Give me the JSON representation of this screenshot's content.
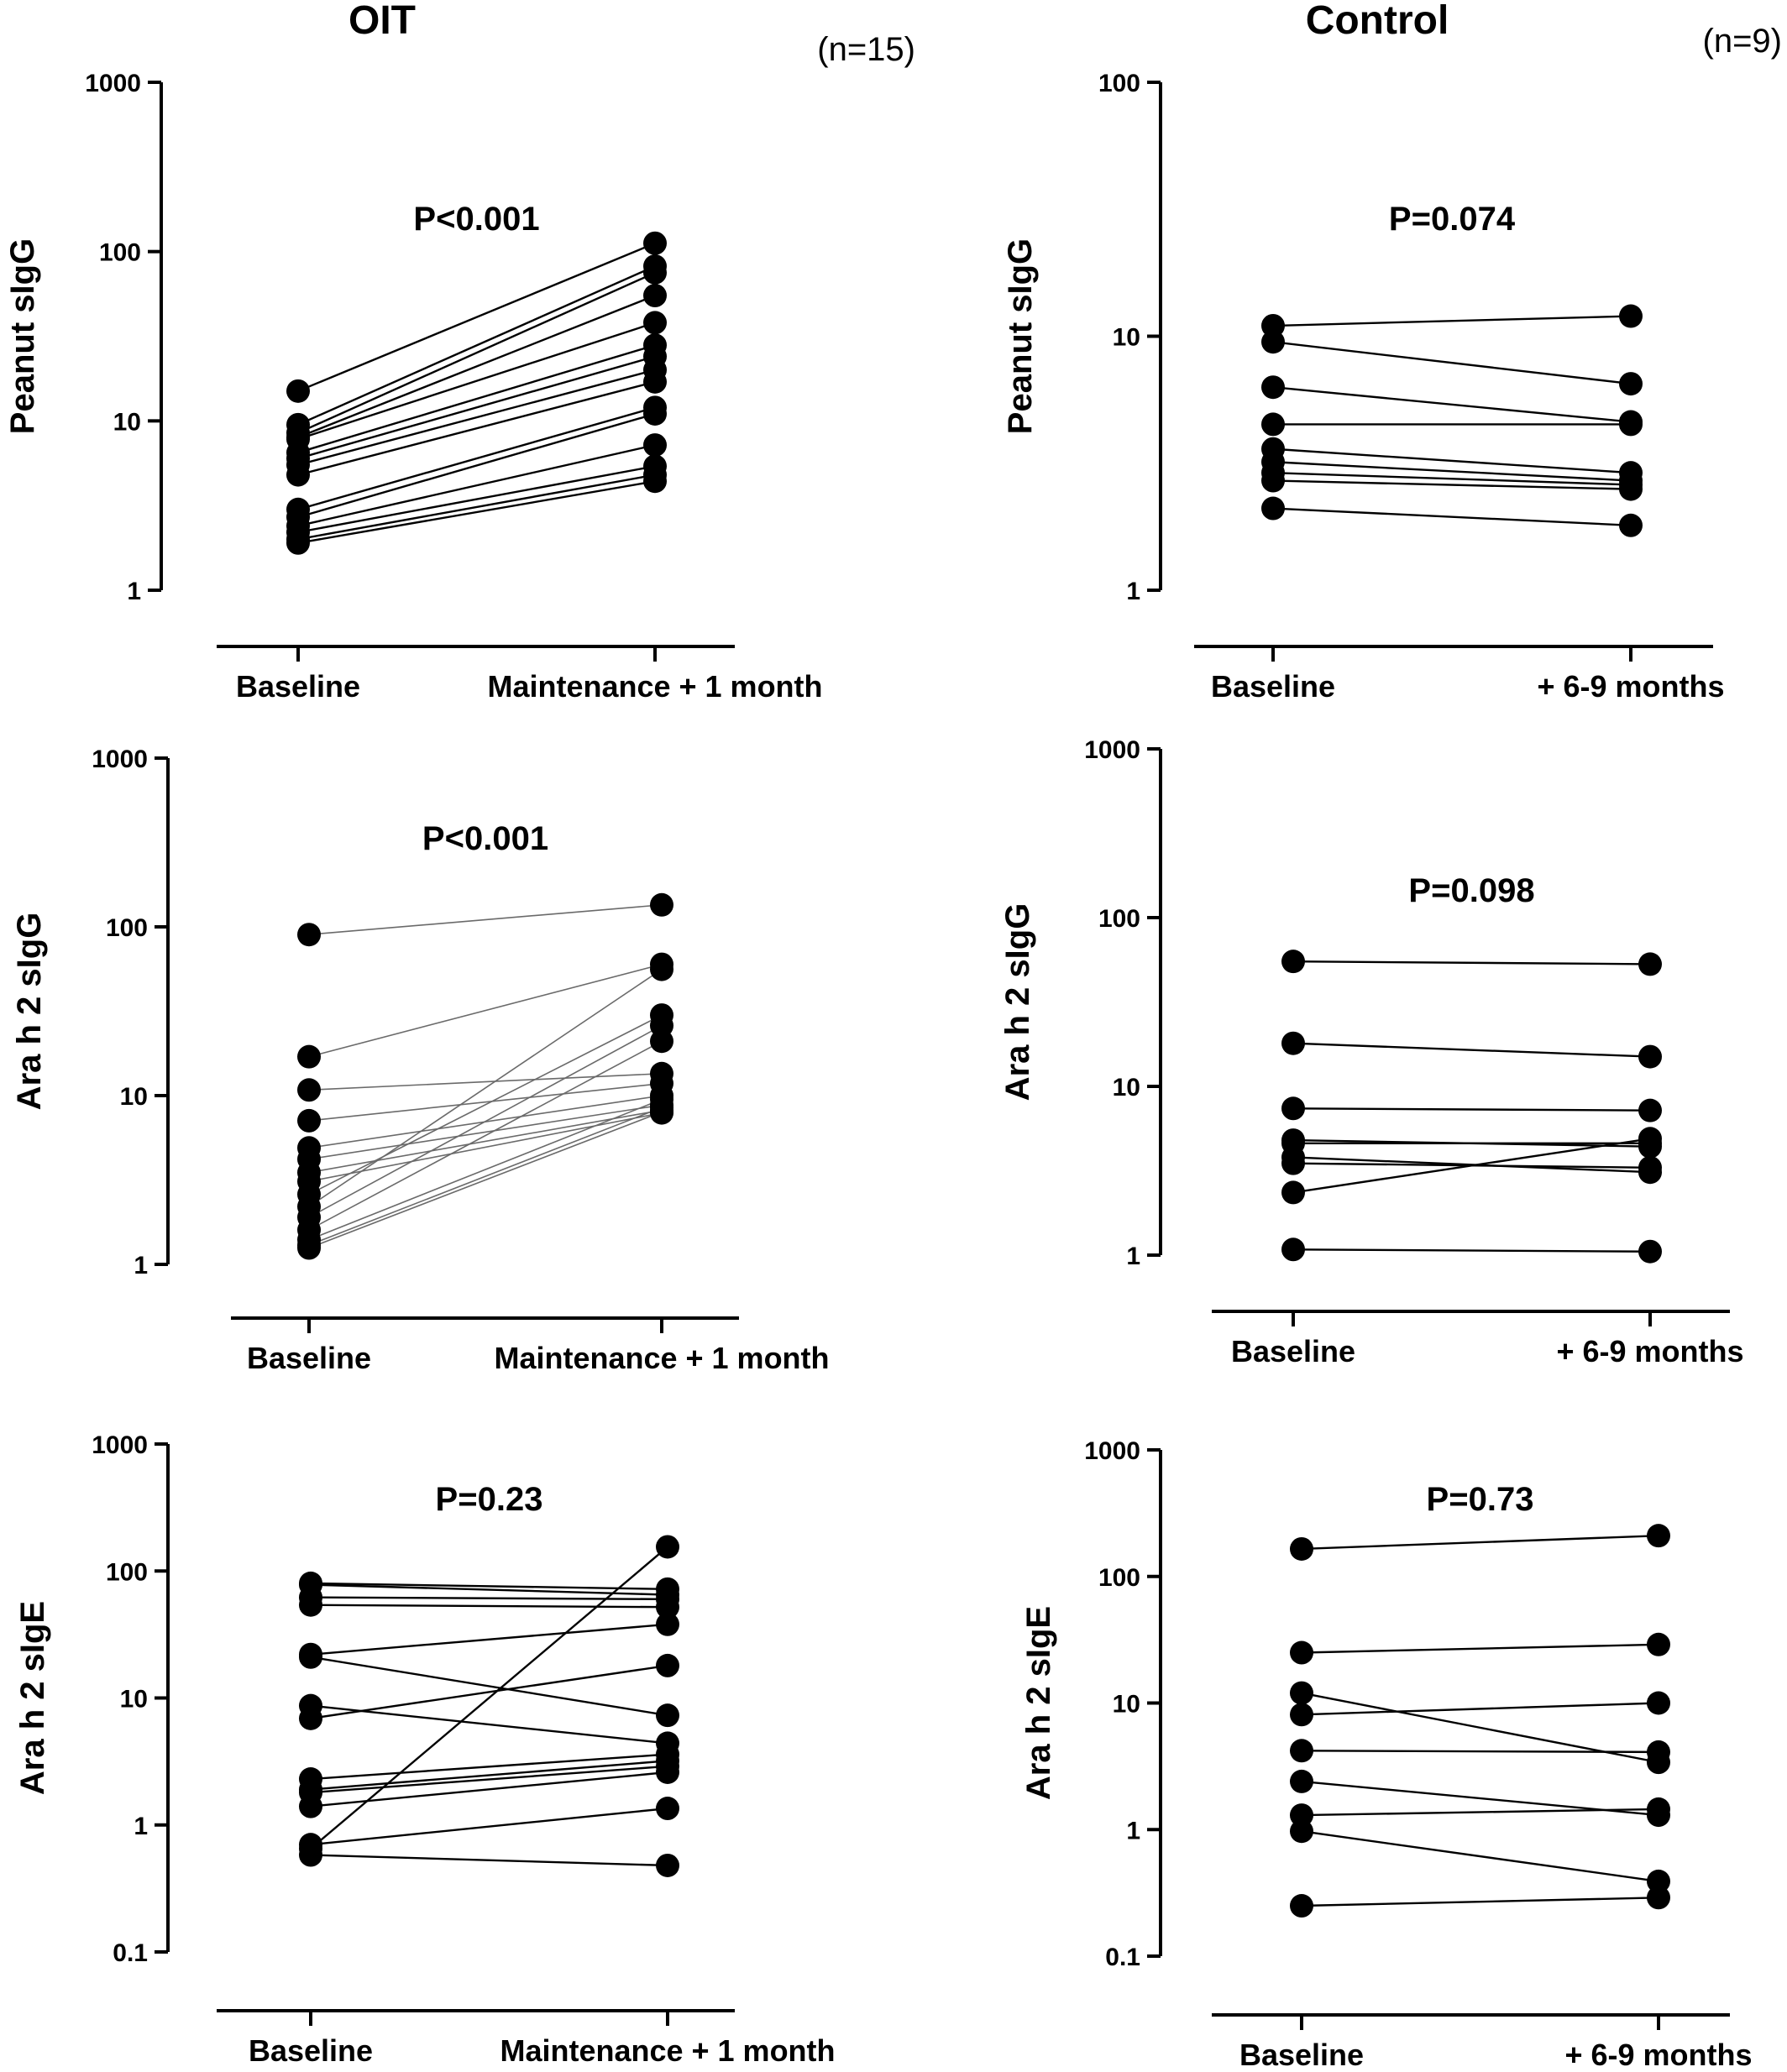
{
  "columns": [
    {
      "title": "OIT",
      "n": "(n=15)"
    },
    {
      "title": "Control",
      "n": "(n=9)"
    }
  ],
  "colors": {
    "marker": "#000000",
    "line": "#000000",
    "line_light": "#6a6a6a"
  },
  "chart_data": [
    {
      "id": "oit-peanut-sigg",
      "type": "line",
      "group": "OIT",
      "ylabel": "Peanut sIgG",
      "yscale": "log",
      "ylim": [
        1,
        1000
      ],
      "yticks": [
        "1",
        "10",
        "100",
        "1000"
      ],
      "categories": [
        "Baseline",
        "Maintenance + 1 month"
      ],
      "annotation": "P<0.001",
      "pairs": [
        [
          15,
          112
        ],
        [
          9.5,
          82
        ],
        [
          8.5,
          75
        ],
        [
          8,
          55
        ],
        [
          7.8,
          38
        ],
        [
          6.5,
          28
        ],
        [
          6,
          24
        ],
        [
          5.5,
          20
        ],
        [
          4.8,
          17
        ],
        [
          3,
          12
        ],
        [
          2.7,
          11
        ],
        [
          2.4,
          7.2
        ],
        [
          2.2,
          5.4
        ],
        [
          2,
          4.8
        ],
        [
          1.9,
          4.4
        ]
      ]
    },
    {
      "id": "control-peanut-sigg",
      "type": "line",
      "group": "Control",
      "ylabel": "Peanut sIgG",
      "yscale": "log",
      "ylim": [
        1,
        100
      ],
      "yticks": [
        "1",
        "10",
        "100"
      ],
      "categories": [
        "Baseline",
        "+ 6-9 months"
      ],
      "annotation": "P=0.074",
      "pairs": [
        [
          11,
          12
        ],
        [
          9.5,
          6.5
        ],
        [
          6.3,
          4.6
        ],
        [
          4.5,
          4.5
        ],
        [
          3.6,
          2.9
        ],
        [
          3.2,
          2.7
        ],
        [
          2.9,
          2.6
        ],
        [
          2.7,
          2.5
        ],
        [
          2.1,
          1.8
        ]
      ]
    },
    {
      "id": "oit-arah2-sigg",
      "type": "line",
      "group": "OIT",
      "ylabel": "Ara h 2 sIgG",
      "yscale": "log",
      "ylim": [
        1,
        1000
      ],
      "yticks": [
        "1",
        "10",
        "100",
        "1000"
      ],
      "categories": [
        "Baseline",
        "Maintenance + 1 month"
      ],
      "annotation": "P<0.001",
      "pairs": [
        [
          90,
          135
        ],
        [
          17,
          60
        ],
        [
          10.8,
          13.5
        ],
        [
          7.1,
          11.8
        ],
        [
          4.9,
          10
        ],
        [
          4.2,
          8.8
        ],
        [
          3.5,
          8.2
        ],
        [
          3.1,
          7.9
        ],
        [
          2.6,
          30
        ],
        [
          2.2,
          56
        ],
        [
          1.9,
          26
        ],
        [
          1.6,
          21
        ],
        [
          1.4,
          9.5
        ],
        [
          1.3,
          8.5
        ],
        [
          1.25,
          8
        ]
      ]
    },
    {
      "id": "control-arah2-sigg",
      "type": "line",
      "group": "Control",
      "ylabel": "Ara h 2 sIgG",
      "yscale": "log",
      "ylim": [
        1,
        1000
      ],
      "yticks": [
        "1",
        "10",
        "100",
        "1000"
      ],
      "categories": [
        "Baseline",
        "+ 6-9 months"
      ],
      "annotation": "P=0.098",
      "pairs": [
        [
          55,
          53
        ],
        [
          18,
          15
        ],
        [
          7.4,
          7.2
        ],
        [
          4.8,
          4.4
        ],
        [
          4.6,
          4.6
        ],
        [
          3.8,
          3.1
        ],
        [
          3.5,
          3.3
        ],
        [
          2.35,
          4.9
        ],
        [
          1.08,
          1.05
        ]
      ]
    },
    {
      "id": "oit-arah2-sige",
      "type": "line",
      "group": "OIT",
      "ylabel": "Ara h 2 sIgE",
      "yscale": "log",
      "ylim": [
        0.1,
        1000
      ],
      "yticks": [
        "0.1",
        "1",
        "10",
        "100",
        "1000"
      ],
      "categories": [
        "Baseline",
        "Maintenance + 1 month"
      ],
      "annotation": "P=0.23",
      "pairs": [
        [
          80,
          72
        ],
        [
          78,
          65
        ],
        [
          62,
          60
        ],
        [
          54,
          52
        ],
        [
          22,
          38
        ],
        [
          21,
          7.3
        ],
        [
          8.7,
          4.4
        ],
        [
          6.9,
          18
        ],
        [
          2.3,
          3.6
        ],
        [
          1.9,
          3.2
        ],
        [
          1.8,
          2.9
        ],
        [
          1.4,
          2.6
        ],
        [
          0.7,
          1.35
        ],
        [
          0.58,
          0.48
        ],
        [
          0.65,
          155
        ]
      ]
    },
    {
      "id": "control-arah2-sige",
      "type": "line",
      "group": "Control",
      "ylabel": "Ara h 2 sIgE",
      "yscale": "log",
      "ylim": [
        0.1,
        1000
      ],
      "yticks": [
        "0.1",
        "1",
        "10",
        "100",
        "1000"
      ],
      "categories": [
        "Baseline",
        "+ 6-9 months"
      ],
      "annotation": "P=0.73",
      "pairs": [
        [
          165,
          210
        ],
        [
          25,
          29
        ],
        [
          12,
          3.4
        ],
        [
          8.1,
          10
        ],
        [
          4.2,
          4.1
        ],
        [
          2.4,
          1.3
        ],
        [
          1.3,
          1.45
        ],
        [
          0.97,
          0.39
        ],
        [
          0.25,
          0.29
        ]
      ]
    }
  ]
}
